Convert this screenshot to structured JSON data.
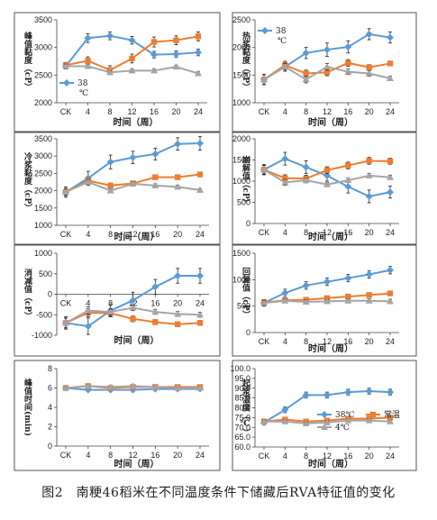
{
  "caption": "图2　南粳46稻米在不同温度条件下储藏后RVA特征值的变化",
  "colors": {
    "blue": "#5B9BD5",
    "orange": "#ED7D31",
    "gray": "#A5A5A5"
  },
  "chart_data": [
    {
      "type": "line",
      "ylabel": "峰值黏度（cP）",
      "xlabel": "时间（周）",
      "categories": [
        "CK",
        "4",
        "8",
        "12",
        "16",
        "20",
        "24"
      ],
      "ylim": [
        2000,
        3500
      ],
      "yticks": [
        2000,
        2500,
        3000,
        3500
      ],
      "legend": [
        "38",
        "℃"
      ],
      "series": [
        {
          "name": "38℃",
          "color": "blue",
          "marker": "diamond",
          "values": [
            2660,
            3170,
            3210,
            3130,
            2870,
            2880,
            2910
          ],
          "err": [
            50,
            80,
            70,
            70,
            60,
            60,
            60
          ]
        },
        {
          "color": "orange",
          "marker": "square",
          "values": [
            2680,
            2760,
            2590,
            2800,
            3100,
            3130,
            3200
          ],
          "err": [
            50,
            70,
            80,
            80,
            90,
            80,
            80
          ]
        },
        {
          "color": "gray",
          "marker": "triangle",
          "values": [
            2660,
            2660,
            2550,
            2580,
            2580,
            2650,
            2530
          ],
          "err": [
            40,
            40,
            30,
            30,
            30,
            30,
            30
          ]
        }
      ]
    },
    {
      "type": "line",
      "ylabel": "热浆黏度（cP）",
      "xlabel": "时间（周）",
      "categories": [
        "CK",
        "4",
        "8",
        "12",
        "16",
        "20",
        "24"
      ],
      "ylim": [
        1000,
        2500
      ],
      "yticks": [
        1000,
        1500,
        2000,
        2500
      ],
      "legend": [
        "38",
        "℃"
      ],
      "series": [
        {
          "name": "38℃",
          "color": "blue",
          "marker": "diamond",
          "values": [
            1420,
            1650,
            1900,
            1960,
            2010,
            2240,
            2180
          ],
          "err": [
            90,
            80,
            100,
            120,
            110,
            100,
            100
          ]
        },
        {
          "color": "orange",
          "marker": "square",
          "values": [
            1420,
            1680,
            1530,
            1550,
            1720,
            1640,
            1710
          ],
          "err": [
            90,
            70,
            60,
            60,
            60,
            50,
            40
          ]
        },
        {
          "color": "gray",
          "marker": "triangle",
          "values": [
            1420,
            1650,
            1420,
            1650,
            1560,
            1530,
            1440
          ],
          "err": [
            90,
            60,
            60,
            60,
            50,
            50,
            40
          ]
        }
      ]
    },
    {
      "type": "line",
      "ylabel": "冷浆黏度（cP）",
      "xlabel": "时间（周）",
      "categories": [
        "CK",
        "4",
        "8",
        "12",
        "16",
        "20",
        "24"
      ],
      "ylim": [
        1000,
        3500
      ],
      "yticks": [
        1000,
        1500,
        2000,
        2500,
        3000,
        3500
      ],
      "series": [
        {
          "color": "blue",
          "marker": "diamond",
          "values": [
            1960,
            2360,
            2830,
            2960,
            3060,
            3350,
            3370
          ],
          "err": [
            150,
            200,
            200,
            180,
            170,
            180,
            200
          ]
        },
        {
          "color": "orange",
          "marker": "square",
          "values": [
            1960,
            2290,
            2150,
            2210,
            2390,
            2390,
            2470
          ],
          "err": [
            100,
            80,
            70,
            70,
            60,
            50,
            50
          ]
        },
        {
          "color": "gray",
          "marker": "triangle",
          "values": [
            1960,
            2250,
            2000,
            2200,
            2150,
            2110,
            2020
          ],
          "err": [
            100,
            70,
            60,
            60,
            50,
            50,
            40
          ]
        }
      ]
    },
    {
      "type": "line",
      "ylabel": "崩解值（cP）",
      "xlabel": "时间（周）",
      "categories": [
        "CK",
        "4",
        "8",
        "12",
        "16",
        "20",
        "24"
      ],
      "ylim": [
        0,
        2000
      ],
      "yticks": [
        0,
        500,
        1000,
        1500,
        2000
      ],
      "series": [
        {
          "color": "blue",
          "marker": "diamond",
          "values": [
            1270,
            1530,
            1330,
            1130,
            870,
            640,
            740
          ],
          "err": [
            120,
            150,
            150,
            130,
            150,
            150,
            140
          ]
        },
        {
          "color": "orange",
          "marker": "square",
          "values": [
            1270,
            1070,
            1060,
            1260,
            1370,
            1480,
            1470
          ],
          "err": [
            100,
            80,
            80,
            80,
            80,
            80,
            70
          ]
        },
        {
          "color": "gray",
          "marker": "triangle",
          "values": [
            1270,
            970,
            1020,
            920,
            1020,
            1130,
            1090
          ],
          "err": [
            100,
            70,
            60,
            50,
            50,
            50,
            50
          ]
        }
      ]
    },
    {
      "type": "line",
      "ylabel": "消减值（cP）",
      "xlabel": "时间（周）",
      "categories": [
        "CK",
        "4",
        "8",
        "12",
        "16",
        "20",
        "24"
      ],
      "ylim": [
        -1000,
        1000
      ],
      "yticks": [
        -1000,
        -500,
        0,
        500,
        1000
      ],
      "series": [
        {
          "color": "blue",
          "marker": "diamond",
          "values": [
            -700,
            -780,
            -400,
            -150,
            180,
            450,
            450
          ],
          "err": [
            150,
            200,
            150,
            200,
            180,
            180,
            180
          ]
        },
        {
          "color": "orange",
          "marker": "square",
          "values": [
            -700,
            -450,
            -460,
            -600,
            -680,
            -730,
            -700
          ],
          "err": [
            120,
            100,
            80,
            70,
            60,
            60,
            60
          ]
        },
        {
          "color": "gray",
          "marker": "triangle",
          "values": [
            -700,
            -400,
            -430,
            -330,
            -430,
            -480,
            -500
          ],
          "err": [
            120,
            90,
            80,
            70,
            60,
            60,
            60
          ]
        }
      ]
    },
    {
      "type": "line",
      "ylabel": "回复值（cP）",
      "xlabel": "时间（周）",
      "categories": [
        "CK",
        "4",
        "8",
        "12",
        "16",
        "20",
        "24"
      ],
      "ylim": [
        0,
        1500
      ],
      "yticks": [
        0,
        500,
        1000,
        1500
      ],
      "series": [
        {
          "color": "blue",
          "marker": "diamond",
          "values": [
            560,
            750,
            890,
            960,
            1030,
            1100,
            1180
          ],
          "err": [
            60,
            70,
            70,
            70,
            70,
            70,
            70
          ]
        },
        {
          "color": "orange",
          "marker": "square",
          "values": [
            570,
            610,
            620,
            650,
            680,
            710,
            740
          ],
          "err": [
            50,
            40,
            40,
            40,
            40,
            40,
            40
          ]
        },
        {
          "color": "gray",
          "marker": "triangle",
          "values": [
            560,
            600,
            580,
            590,
            600,
            600,
            590
          ],
          "err": [
            50,
            40,
            40,
            40,
            40,
            40,
            40
          ]
        }
      ]
    },
    {
      "type": "line",
      "ylabel": "峰值时间(min)",
      "xlabel": "时间（周）",
      "categories": [
        "CK",
        "4",
        "8",
        "12",
        "16",
        "20",
        "24"
      ],
      "ylim": [
        0,
        8
      ],
      "yticks": [
        0,
        2,
        4,
        6,
        8
      ],
      "series": [
        {
          "color": "blue",
          "marker": "diamond",
          "values": [
            6.0,
            5.8,
            5.8,
            5.8,
            5.9,
            5.9,
            5.9
          ],
          "err": [
            0.1,
            0.1,
            0.1,
            0.1,
            0.1,
            0.1,
            0.1
          ]
        },
        {
          "color": "orange",
          "marker": "square",
          "values": [
            6.0,
            6.2,
            6.0,
            6.1,
            6.1,
            6.1,
            6.1
          ],
          "err": [
            0.1,
            0.1,
            0.1,
            0.1,
            0.1,
            0.1,
            0.1
          ]
        },
        {
          "color": "gray",
          "marker": "triangle",
          "values": [
            6.0,
            6.2,
            6.1,
            6.2,
            6.1,
            6.0,
            6.0
          ],
          "err": [
            0.1,
            0.1,
            0.1,
            0.1,
            0.1,
            0.1,
            0.1
          ]
        }
      ]
    },
    {
      "type": "line",
      "ylabel": "起浆温度（℃）",
      "xlabel": "时间（周）",
      "categories": [
        "CK",
        "4",
        "8",
        "12",
        "16",
        "20",
        "24"
      ],
      "ylim": [
        60.0,
        100.0
      ],
      "yticks": [
        60.0,
        65.0,
        70.0,
        75.0,
        80.0,
        85.0,
        90.0,
        95.0,
        100.0
      ],
      "yfixed": 1,
      "legend": [
        "38℃",
        "常温",
        "4℃"
      ],
      "series": [
        {
          "name": "38℃",
          "color": "blue",
          "marker": "diamond",
          "values": [
            72.5,
            79.0,
            86.5,
            86.5,
            88.0,
            88.5,
            88.0
          ],
          "err": [
            1.0,
            1.5,
            1.5,
            1.5,
            1.5,
            1.5,
            1.5
          ]
        },
        {
          "name": "常温",
          "color": "orange",
          "marker": "square",
          "values": [
            73.0,
            74.0,
            73.0,
            73.5,
            74.5,
            74.5,
            75.0
          ],
          "err": [
            0.8,
            0.8,
            0.8,
            0.8,
            0.8,
            0.8,
            0.8
          ]
        },
        {
          "name": "4℃",
          "color": "gray",
          "marker": "triangle",
          "values": [
            73.0,
            73.0,
            72.0,
            72.5,
            73.5,
            73.5,
            73.0
          ],
          "err": [
            0.8,
            0.8,
            0.8,
            0.8,
            0.8,
            0.8,
            0.8
          ]
        }
      ]
    }
  ]
}
